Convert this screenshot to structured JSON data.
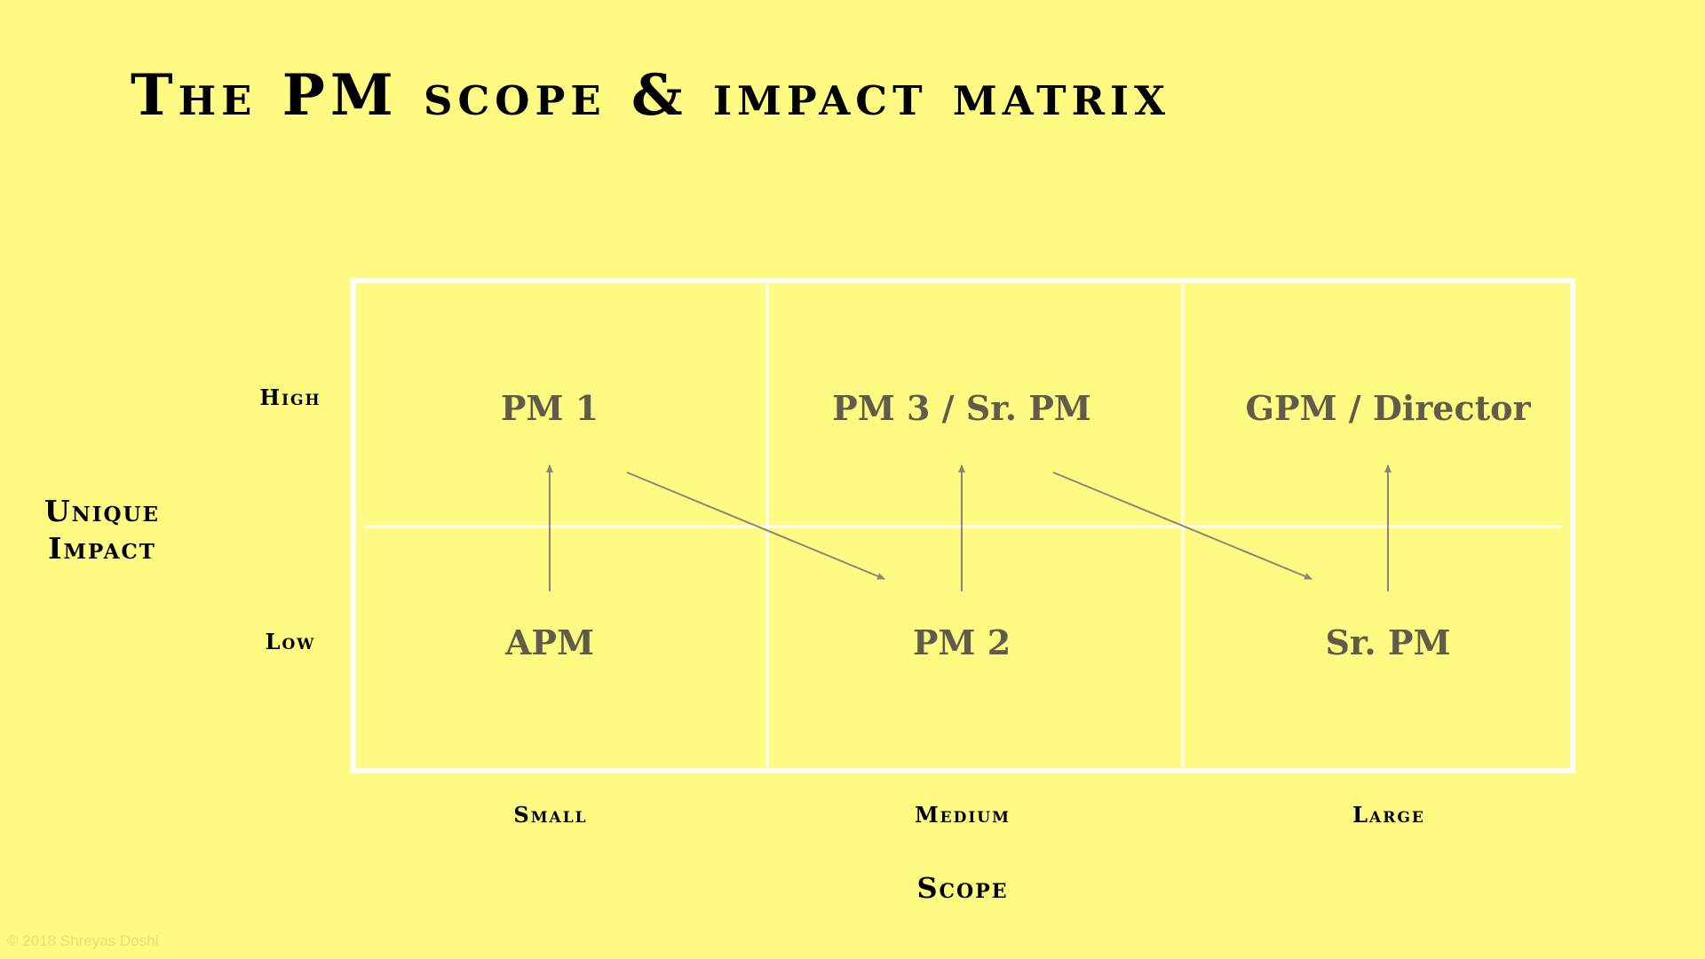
{
  "title": "The PM scope & impact matrix",
  "y_axis": {
    "title_line1": "Unique",
    "title_line2": "Impact",
    "high_label": "High",
    "low_label": "Low"
  },
  "x_axis": {
    "title": "Scope",
    "small_label": "Small",
    "medium_label": "Medium",
    "large_label": "Large"
  },
  "cells": {
    "high_small": "PM 1",
    "high_medium": "PM 3 / Sr. PM",
    "high_large": "GPM / Director",
    "low_small": "APM",
    "low_medium": "PM 2",
    "low_large": "Sr. PM"
  },
  "colors": {
    "background": "#fffb82",
    "grid_lines": "#ffffff",
    "role_text": "#5f5c4c",
    "arrows": "#8a8778"
  },
  "copyright": "© 2018 Shreyas Doshi"
}
